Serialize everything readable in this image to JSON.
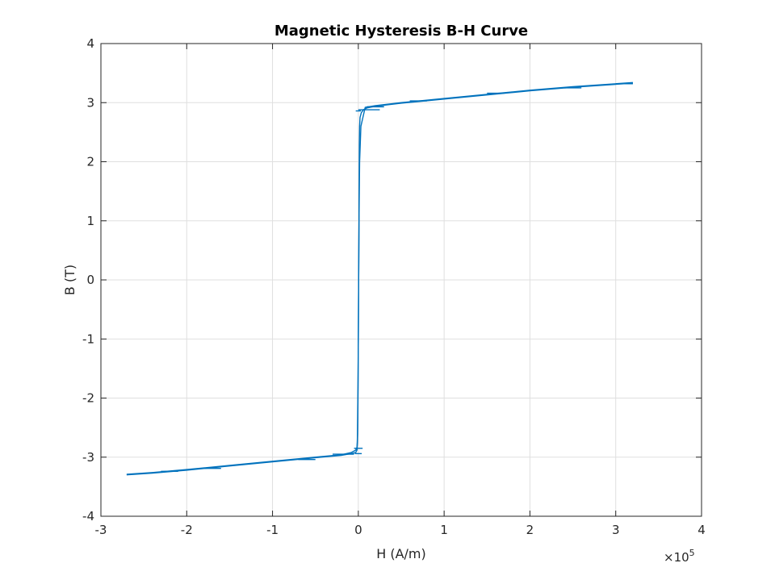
{
  "chart_data": {
    "type": "line",
    "title": "Magnetic Hysteresis B-H Curve",
    "xlabel": "H (A/m)",
    "ylabel": "B (T)",
    "x_multiplier": {
      "base": "×10",
      "exponent": "5"
    },
    "x_scale_factor": 100000,
    "xlim": [
      -300000,
      400000
    ],
    "ylim": [
      -4,
      4
    ],
    "x_ticks": [
      -300000,
      -200000,
      -100000,
      0,
      100000,
      200000,
      300000,
      400000
    ],
    "x_tick_labels": [
      "-3",
      "-2",
      "-1",
      "0",
      "1",
      "2",
      "3",
      "4"
    ],
    "y_ticks": [
      -4,
      -3,
      -2,
      -1,
      0,
      1,
      2,
      3,
      4
    ],
    "y_tick_labels": [
      "-4",
      "-3",
      "-2",
      "-1",
      "0",
      "1",
      "2",
      "3",
      "4"
    ],
    "grid": true,
    "box": true,
    "series": [
      {
        "color": "#0072bd",
        "segments": [
          {
            "x": [
              -270000,
              -240000,
              -200000,
              -150000,
              -100000,
              -50000,
              -20000,
              -8000,
              -3000,
              -1500,
              -800,
              -400,
              0,
              400,
              800,
              1000,
              1200,
              1500,
              2000,
              3500,
              6000,
              10000,
              20000,
              50000,
              100000,
              150000,
              200000,
              250000,
              290000,
              320000
            ],
            "y": [
              -3.3,
              -3.27,
              -3.22,
              -3.15,
              -3.08,
              -3.01,
              -2.97,
              -2.94,
              -2.92,
              -2.88,
              -2.6,
              -2.0,
              -1.0,
              0.0,
              1.0,
              1.8,
              2.3,
              2.6,
              2.75,
              2.83,
              2.88,
              2.91,
              2.94,
              2.99,
              3.06,
              3.13,
              3.2,
              3.26,
              3.3,
              3.33
            ]
          },
          {
            "x": [
              -270000,
              -240000,
              -200000,
              -150000,
              -100000,
              -50000,
              -20000,
              -8000,
              -3000,
              -1500,
              -1200,
              -1000,
              -800,
              -400,
              0,
              400,
              800,
              1500,
              3000,
              8000,
              20000,
              50000,
              100000,
              150000,
              200000,
              250000,
              290000,
              320000
            ],
            "y": [
              -3.29,
              -3.26,
              -3.21,
              -3.14,
              -3.07,
              -3.0,
              -2.96,
              -2.92,
              -2.88,
              -2.83,
              -2.75,
              -2.6,
              -2.3,
              -1.8,
              -1.0,
              0.0,
              1.0,
              2.0,
              2.6,
              2.92,
              2.95,
              3.0,
              3.07,
              3.14,
              3.21,
              3.27,
              3.31,
              3.34
            ]
          },
          {
            "x": [
              -4000,
              4000
            ],
            "y": [
              -2.94,
              -2.94
            ]
          },
          {
            "x": [
              -5000,
              5000
            ],
            "y": [
              -2.85,
              -2.85
            ]
          },
          {
            "x": [
              -3000,
              3000
            ],
            "y": [
              2.86,
              2.86
            ]
          },
          {
            "x": [
              0,
              25000
            ],
            "y": [
              2.88,
              2.88
            ]
          },
          {
            "x": [
              -30000,
              -5000
            ],
            "y": [
              -2.95,
              -2.95
            ]
          },
          {
            "x": [
              -230000,
              -210000
            ],
            "y": [
              -3.24,
              -3.24
            ]
          },
          {
            "x": [
              -180000,
              -160000
            ],
            "y": [
              -3.19,
              -3.19
            ]
          },
          {
            "x": [
              -70000,
              -50000
            ],
            "y": [
              -3.04,
              -3.04
            ]
          },
          {
            "x": [
              10000,
              30000
            ],
            "y": [
              2.93,
              2.93
            ]
          },
          {
            "x": [
              60000,
              80000
            ],
            "y": [
              3.03,
              3.03
            ]
          },
          {
            "x": [
              150000,
              170000
            ],
            "y": [
              3.16,
              3.16
            ]
          },
          {
            "x": [
              240000,
              260000
            ],
            "y": [
              3.25,
              3.25
            ]
          },
          {
            "x": [
              300000,
              320000
            ],
            "y": [
              3.32,
              3.32
            ]
          }
        ]
      }
    ]
  }
}
